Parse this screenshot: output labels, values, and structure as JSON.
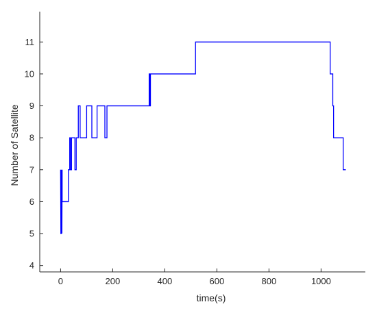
{
  "chart_data": {
    "type": "line",
    "title": "",
    "xlabel": "time(s)",
    "ylabel": "Number of Satellite",
    "xlim": [
      -80,
      1170
    ],
    "ylim": [
      3.8,
      11.95
    ],
    "xticks": [
      0,
      200,
      400,
      600,
      800,
      1000
    ],
    "yticks": [
      4,
      5,
      6,
      7,
      8,
      9,
      10,
      11
    ],
    "grid": false,
    "legend": "none",
    "series": [
      {
        "color": "#0000ff",
        "x": [
          0,
          1,
          2,
          3,
          4,
          5,
          6,
          6,
          8,
          8,
          10,
          10,
          30,
          30,
          35,
          35,
          38,
          38,
          42,
          42,
          55,
          55,
          60,
          60,
          68,
          68,
          75,
          75,
          90,
          90,
          100,
          100,
          120,
          120,
          140,
          140,
          148,
          148,
          170,
          170,
          178,
          178,
          185,
          185,
          340,
          340,
          342,
          342,
          345,
          345,
          515,
          515,
          518,
          518,
          520,
          520,
          1035,
          1035,
          1040,
          1040,
          1045,
          1045,
          1048,
          1048,
          1085,
          1085,
          1095
        ],
        "values": [
          7,
          5,
          5,
          7,
          6,
          5,
          7,
          6,
          6,
          6,
          6,
          6,
          6,
          7,
          7,
          8,
          8,
          7,
          7,
          8,
          8,
          7,
          7,
          8,
          8,
          9,
          9,
          8,
          8,
          8,
          8,
          9,
          9,
          8,
          8,
          9,
          9,
          9,
          9,
          8,
          8,
          9,
          9,
          9,
          9,
          10,
          10,
          9,
          9,
          10,
          10,
          10,
          10,
          11,
          11,
          11,
          11,
          10,
          10,
          10,
          10,
          9,
          9,
          8,
          8,
          7,
          7
        ]
      }
    ]
  }
}
